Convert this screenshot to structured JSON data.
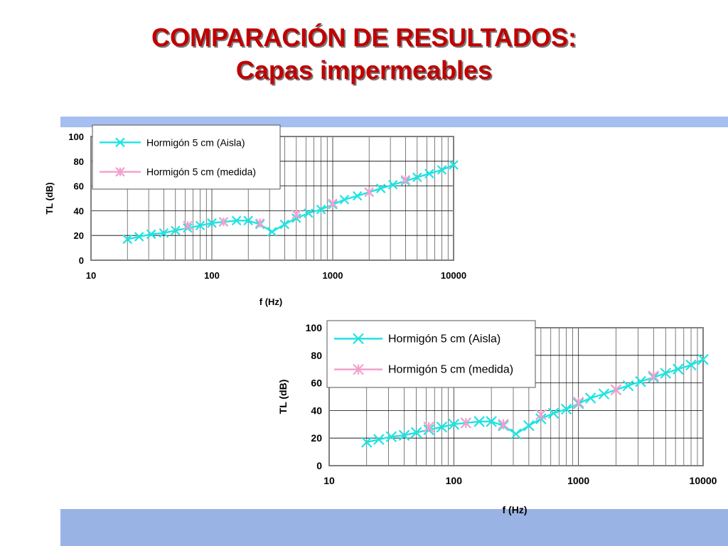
{
  "title": {
    "line1": "COMPARACIÓN DE RESULTADOS:",
    "line2": "Capas impermeables"
  },
  "colors": {
    "title": "#c00000",
    "band": "#a4bff0",
    "series_aisla": "#1fe3e3",
    "series_medida": "#f2a0cc"
  },
  "chart_data": [
    {
      "type": "line",
      "xlabel": "f (Hz)",
      "ylabel": "TL (dB)",
      "xscale": "log",
      "xlim": [
        10,
        10000
      ],
      "ylim": [
        0,
        100
      ],
      "xticks": [
        10,
        100,
        1000,
        10000
      ],
      "xtick_labels": [
        "10",
        "100",
        "1000",
        "10000"
      ],
      "yticks": [
        0,
        20,
        40,
        60,
        80,
        100
      ],
      "ytick_labels": [
        "0",
        "20",
        "40",
        "60",
        "80",
        "100"
      ],
      "grid": true,
      "legend_position": "top-left",
      "series": [
        {
          "name": "Hormigón 5 cm (Aisla)",
          "color": "#1fe3e3",
          "marker": "x",
          "x": [
            20,
            25,
            31.5,
            40,
            50,
            63,
            80,
            100,
            125,
            160,
            200,
            250,
            315,
            400,
            500,
            630,
            800,
            1000,
            1250,
            1600,
            2000,
            2500,
            3150,
            4000,
            5000,
            6300,
            8000,
            10000
          ],
          "y": [
            17,
            19,
            21,
            22,
            24,
            26,
            28,
            30,
            31,
            32,
            32,
            29,
            23,
            29,
            34,
            38,
            41,
            45,
            49,
            52,
            55,
            58,
            61,
            64,
            67,
            70,
            73,
            77
          ]
        },
        {
          "name": "Hormigón 5 cm (medida)",
          "color": "#f2a0cc",
          "marker": "*",
          "x": [
            63,
            125,
            250,
            500,
            1000,
            2000,
            4000
          ],
          "y": [
            28,
            31,
            30,
            37,
            46,
            55,
            65
          ]
        }
      ]
    },
    {
      "type": "line",
      "xlabel": "f (Hz)",
      "ylabel": "TL (dB)",
      "xscale": "log",
      "xlim": [
        10,
        10000
      ],
      "ylim": [
        0,
        100
      ],
      "xticks": [
        10,
        100,
        1000,
        10000
      ],
      "xtick_labels": [
        "10",
        "100",
        "1000",
        "10000"
      ],
      "yticks": [
        0,
        20,
        40,
        60,
        80,
        100
      ],
      "ytick_labels": [
        "0",
        "20",
        "40",
        "60",
        "80",
        "100"
      ],
      "grid": true,
      "legend_position": "top-left",
      "series": [
        {
          "name": "Hormigón 5 cm (Aisla)",
          "color": "#1fe3e3",
          "marker": "x",
          "x": [
            20,
            25,
            31.5,
            40,
            50,
            63,
            80,
            100,
            125,
            160,
            200,
            250,
            315,
            400,
            500,
            630,
            800,
            1000,
            1250,
            1600,
            2000,
            2500,
            3150,
            4000,
            5000,
            6300,
            8000,
            10000
          ],
          "y": [
            17,
            19,
            21,
            22,
            24,
            26,
            28,
            30,
            31,
            32,
            32,
            29,
            23,
            29,
            34,
            38,
            41,
            45,
            49,
            52,
            55,
            58,
            61,
            64,
            67,
            70,
            73,
            77
          ]
        },
        {
          "name": "Hormigón 5 cm (medida)",
          "color": "#f2a0cc",
          "marker": "*",
          "x": [
            63,
            125,
            250,
            500,
            1000,
            2000,
            4000
          ],
          "y": [
            28,
            31,
            30,
            37,
            46,
            55,
            65
          ]
        }
      ]
    }
  ]
}
